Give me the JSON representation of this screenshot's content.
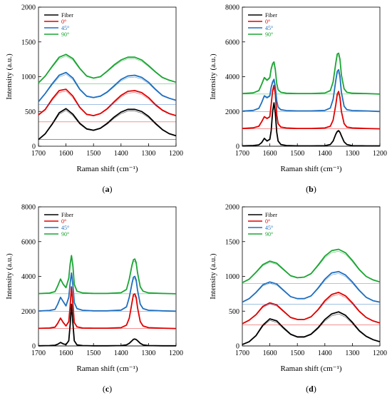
{
  "chart_data": [
    {
      "type": "line",
      "panel_label": "(a)",
      "caption_parts": [
        "(",
        "a",
        ")"
      ],
      "xlabel": "Raman shift (cm⁻¹)",
      "ylabel": "Intensity (a.u.)",
      "xlim": [
        1700,
        1200
      ],
      "x_reversed": true,
      "ylim": [
        0,
        2000
      ],
      "xticks": [
        1700,
        1600,
        1500,
        1400,
        1300,
        1200
      ],
      "yticks": [
        0,
        500,
        1000,
        1500,
        2000
      ],
      "legend": {
        "position": "top-left",
        "entries": [
          "Fiber",
          "0°",
          "45°",
          "90°"
        ]
      },
      "x": [
        1700,
        1675,
        1650,
        1625,
        1600,
        1575,
        1550,
        1525,
        1500,
        1475,
        1450,
        1425,
        1400,
        1375,
        1350,
        1325,
        1300,
        1275,
        1250,
        1225,
        1200
      ],
      "series": [
        {
          "name": "Fiber",
          "color": "#000000",
          "values": [
            95,
            180,
            320,
            480,
            540,
            460,
            330,
            250,
            230,
            260,
            330,
            420,
            490,
            530,
            530,
            500,
            430,
            330,
            240,
            180,
            150
          ],
          "baseline": 100
        },
        {
          "name": "0°",
          "color": "#e00000",
          "values": [
            450,
            530,
            680,
            800,
            820,
            720,
            560,
            460,
            440,
            470,
            540,
            640,
            730,
            790,
            800,
            770,
            700,
            600,
            520,
            470,
            440
          ],
          "baseline": 350
        },
        {
          "name": "45°",
          "color": "#1f6fbf",
          "values": [
            640,
            760,
            900,
            1020,
            1060,
            980,
            820,
            720,
            700,
            720,
            780,
            870,
            960,
            1010,
            1020,
            990,
            920,
            820,
            730,
            690,
            660
          ],
          "baseline": 600
        },
        {
          "name": "90°",
          "color": "#1aa533",
          "values": [
            910,
            1010,
            1150,
            1280,
            1320,
            1260,
            1120,
            1010,
            980,
            1000,
            1080,
            1170,
            1240,
            1280,
            1280,
            1240,
            1160,
            1070,
            990,
            950,
            920
          ],
          "baseline": 900
        }
      ]
    },
    {
      "type": "line",
      "panel_label": "(b)",
      "caption_parts": [
        "(",
        "b",
        ")"
      ],
      "xlabel": "Raman shift (cm⁻¹)",
      "ylabel": "Intensity (a.u.)",
      "xlim": [
        1700,
        1200
      ],
      "x_reversed": true,
      "ylim": [
        0,
        8000
      ],
      "xticks": [
        1700,
        1600,
        1500,
        1400,
        1300,
        1200
      ],
      "yticks": [
        0,
        2000,
        4000,
        6000,
        8000
      ],
      "legend": {
        "position": "top-left",
        "entries": [
          "Fiber",
          "0°",
          "45°",
          "90°"
        ]
      },
      "x": [
        1700,
        1660,
        1640,
        1630,
        1620,
        1610,
        1600,
        1595,
        1590,
        1585,
        1580,
        1575,
        1570,
        1560,
        1540,
        1500,
        1450,
        1400,
        1380,
        1370,
        1360,
        1355,
        1350,
        1345,
        1340,
        1330,
        1320,
        1300,
        1250,
        1200
      ],
      "series": [
        {
          "name": "Fiber",
          "color": "#000000",
          "values": [
            20,
            40,
            80,
            200,
            450,
            300,
            400,
            900,
            2000,
            2500,
            1900,
            800,
            300,
            100,
            40,
            20,
            20,
            30,
            100,
            300,
            700,
            850,
            900,
            800,
            600,
            250,
            100,
            30,
            20,
            20
          ],
          "baseline": 0
        },
        {
          "name": "0°",
          "color": "#e00000",
          "values": [
            1020,
            1060,
            1150,
            1400,
            1700,
            1600,
            1700,
            2400,
            3200,
            3500,
            3000,
            1800,
            1300,
            1100,
            1050,
            1020,
            1020,
            1050,
            1150,
            1500,
            2400,
            3000,
            3150,
            2800,
            2000,
            1300,
            1100,
            1050,
            1020,
            1000
          ],
          "baseline": 1000
        },
        {
          "name": "45°",
          "color": "#1f6fbf",
          "values": [
            2020,
            2060,
            2180,
            2500,
            2900,
            2800,
            2900,
            3400,
            3700,
            3850,
            3400,
            2600,
            2250,
            2100,
            2050,
            2030,
            2030,
            2060,
            2200,
            2700,
            3800,
            4300,
            4400,
            4000,
            3100,
            2300,
            2100,
            2050,
            2030,
            2000
          ],
          "baseline": 2000
        },
        {
          "name": "90°",
          "color": "#1aa533",
          "values": [
            3030,
            3070,
            3200,
            3550,
            3950,
            3800,
            3950,
            4450,
            4750,
            4850,
            4400,
            3600,
            3250,
            3100,
            3050,
            3030,
            3030,
            3060,
            3200,
            3700,
            4800,
            5300,
            5350,
            5000,
            4100,
            3300,
            3100,
            3050,
            3030,
            3000
          ],
          "baseline": 3000
        }
      ]
    },
    {
      "type": "line",
      "panel_label": "(c)",
      "caption_parts": [
        "(",
        "c",
        ")"
      ],
      "xlabel": "Raman shift (cm⁻¹)",
      "ylabel": "Intensity (a.u.)",
      "xlim": [
        1700,
        1200
      ],
      "x_reversed": true,
      "ylim": [
        0,
        8000
      ],
      "xticks": [
        1700,
        1600,
        1500,
        1400,
        1300,
        1200
      ],
      "yticks": [
        0,
        2000,
        4000,
        6000,
        8000
      ],
      "legend": {
        "position": "top-left",
        "entries": [
          "Fiber",
          "0°",
          "45°",
          "90°"
        ]
      },
      "x": [
        1700,
        1660,
        1640,
        1630,
        1620,
        1610,
        1600,
        1590,
        1585,
        1580,
        1575,
        1570,
        1560,
        1540,
        1500,
        1450,
        1400,
        1380,
        1370,
        1360,
        1355,
        1350,
        1345,
        1340,
        1330,
        1320,
        1300,
        1250,
        1200
      ],
      "series": [
        {
          "name": "Fiber",
          "color": "#000000",
          "values": [
            10,
            20,
            40,
            100,
            200,
            120,
            80,
            300,
            1200,
            2400,
            1300,
            300,
            60,
            20,
            10,
            10,
            20,
            60,
            150,
            300,
            380,
            400,
            370,
            300,
            150,
            60,
            20,
            10,
            10
          ],
          "baseline": 0
        },
        {
          "name": "0°",
          "color": "#e00000",
          "values": [
            1010,
            1030,
            1080,
            1300,
            1600,
            1350,
            1150,
            1400,
            2300,
            3400,
            2400,
            1350,
            1100,
            1030,
            1020,
            1020,
            1050,
            1200,
            1600,
            2500,
            2950,
            3000,
            2800,
            2200,
            1400,
            1150,
            1050,
            1020,
            1000
          ],
          "baseline": 1000
        },
        {
          "name": "45°",
          "color": "#1f6fbf",
          "values": [
            2010,
            2040,
            2100,
            2400,
            2800,
            2550,
            2300,
            2800,
            3600,
            4200,
            3500,
            2500,
            2150,
            2050,
            2020,
            2020,
            2060,
            2250,
            2800,
            3600,
            3950,
            4000,
            3800,
            3200,
            2400,
            2150,
            2050,
            2020,
            2000
          ],
          "baseline": 2000
        },
        {
          "name": "90°",
          "color": "#1aa533",
          "values": [
            3010,
            3040,
            3120,
            3450,
            3850,
            3550,
            3350,
            3900,
            4700,
            5200,
            4600,
            3550,
            3150,
            3050,
            3020,
            3020,
            3060,
            3250,
            3850,
            4650,
            4950,
            5000,
            4800,
            4200,
            3400,
            3150,
            3050,
            3020,
            3000
          ],
          "baseline": 3000
        }
      ]
    },
    {
      "type": "line",
      "panel_label": "(d)",
      "caption_parts": [
        "(",
        "d",
        ")"
      ],
      "xlabel": "Raman shift (cm⁻¹)",
      "ylabel": "Intensity (a.u.)",
      "xlim": [
        1700,
        1200
      ],
      "x_reversed": true,
      "ylim": [
        0,
        2000
      ],
      "xticks": [
        1700,
        1600,
        1500,
        1400,
        1300,
        1200
      ],
      "yticks": [
        0,
        500,
        1000,
        1500,
        2000
      ],
      "legend": {
        "position": "top-left",
        "entries": [
          "Fiber",
          "0°",
          "45°",
          "90°"
        ]
      },
      "x": [
        1700,
        1675,
        1650,
        1625,
        1600,
        1575,
        1550,
        1525,
        1500,
        1475,
        1450,
        1425,
        1400,
        1375,
        1350,
        1325,
        1300,
        1275,
        1250,
        1225,
        1200
      ],
      "series": [
        {
          "name": "Fiber",
          "color": "#000000",
          "values": [
            20,
            60,
            150,
            300,
            390,
            360,
            260,
            170,
            130,
            130,
            170,
            260,
            380,
            460,
            490,
            440,
            340,
            220,
            140,
            90,
            60
          ],
          "baseline": 0
        },
        {
          "name": "0°",
          "color": "#e00000",
          "values": [
            320,
            370,
            450,
            570,
            620,
            590,
            500,
            410,
            380,
            380,
            420,
            520,
            650,
            740,
            770,
            720,
            620,
            500,
            410,
            360,
            330
          ],
          "baseline": 300
        },
        {
          "name": "45°",
          "color": "#1f6fbf",
          "values": [
            630,
            680,
            770,
            880,
            920,
            890,
            800,
            710,
            680,
            680,
            720,
            830,
            960,
            1050,
            1070,
            1020,
            920,
            800,
            700,
            650,
            630
          ],
          "baseline": 600
        },
        {
          "name": "90°",
          "color": "#1aa533",
          "values": [
            910,
            960,
            1060,
            1170,
            1220,
            1190,
            1100,
            1010,
            980,
            990,
            1040,
            1160,
            1290,
            1370,
            1390,
            1340,
            1230,
            1100,
            1000,
            950,
            920
          ],
          "baseline": 900
        }
      ]
    }
  ]
}
